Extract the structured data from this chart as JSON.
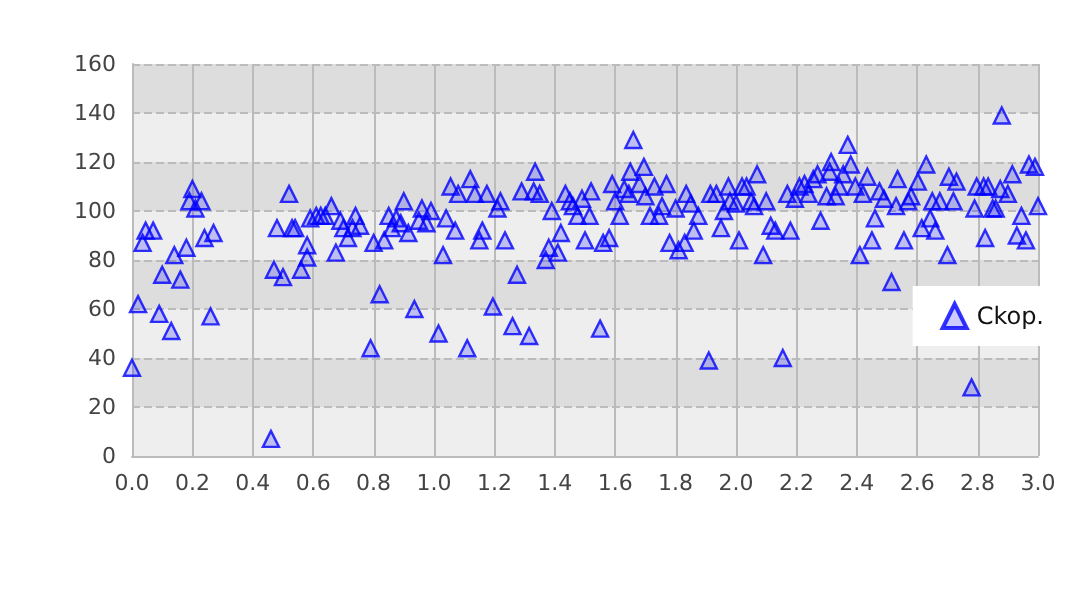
{
  "chart_data": {
    "type": "scatter",
    "marker": "triangle",
    "grid": true,
    "legend": "right",
    "xlim": [
      0,
      3.0
    ],
    "ylim": [
      0,
      160
    ],
    "xticks": [
      {
        "value": 0,
        "label": "0.0"
      },
      {
        "value": 0.2,
        "label": "0.2"
      },
      {
        "value": 0.4,
        "label": "0.4"
      },
      {
        "value": 0.6,
        "label": "0.6"
      },
      {
        "value": 0.8,
        "label": "0.8"
      },
      {
        "value": 1.0,
        "label": "1.0"
      },
      {
        "value": 1.2,
        "label": "1.2"
      },
      {
        "value": 1.4,
        "label": "1.4"
      },
      {
        "value": 1.6,
        "label": "1.6"
      },
      {
        "value": 1.8,
        "label": "1.8"
      },
      {
        "value": 2.0,
        "label": "2.0"
      },
      {
        "value": 2.2,
        "label": "2.2"
      },
      {
        "value": 2.4,
        "label": "2.4"
      },
      {
        "value": 2.6,
        "label": "2.6"
      },
      {
        "value": 2.8,
        "label": "2.8"
      },
      {
        "value": 3.0,
        "label": "3.0"
      }
    ],
    "yticks": [
      0,
      20,
      40,
      60,
      80,
      100,
      120,
      140,
      160
    ],
    "series": [
      {
        "name": "Ckop.",
        "color": "#0000ff",
        "x": [
          0.0,
          0.02,
          0.035,
          0.045,
          0.07,
          0.1,
          0.09,
          0.13,
          0.14,
          0.16,
          0.18,
          0.2,
          0.19,
          0.21,
          0.23,
          0.24,
          0.26,
          0.27,
          0.46,
          0.47,
          0.5,
          0.48,
          0.52,
          0.53,
          0.54,
          0.56,
          0.58,
          0.58,
          0.59,
          0.61,
          0.625,
          0.64,
          0.66,
          0.675,
          0.69,
          0.7,
          0.715,
          0.73,
          0.74,
          0.755,
          0.79,
          0.8,
          0.82,
          0.835,
          0.85,
          0.86,
          0.875,
          0.89,
          0.9,
          0.915,
          0.935,
          0.95,
          0.96,
          0.975,
          0.99,
          1.015,
          1.03,
          1.04,
          1.055,
          1.07,
          1.08,
          1.11,
          1.12,
          1.135,
          1.15,
          1.16,
          1.175,
          1.195,
          1.21,
          1.22,
          1.235,
          1.26,
          1.275,
          1.29,
          1.315,
          1.33,
          1.335,
          1.35,
          1.37,
          1.38,
          1.39,
          1.41,
          1.42,
          1.435,
          1.45,
          1.46,
          1.475,
          1.49,
          1.5,
          1.515,
          1.52,
          1.55,
          1.56,
          1.58,
          1.59,
          1.6,
          1.615,
          1.63,
          1.645,
          1.65,
          1.66,
          1.68,
          1.695,
          1.7,
          1.715,
          1.73,
          1.745,
          1.755,
          1.77,
          1.78,
          1.8,
          1.81,
          1.83,
          1.835,
          1.85,
          1.86,
          1.875,
          1.91,
          1.915,
          1.935,
          1.95,
          1.96,
          1.975,
          1.98,
          2.0,
          2.01,
          2.02,
          2.035,
          2.05,
          2.06,
          2.07,
          2.09,
          2.1,
          2.115,
          2.13,
          2.155,
          2.17,
          2.18,
          2.195,
          2.21,
          2.227,
          2.24,
          2.256,
          2.27,
          2.28,
          2.3,
          2.31,
          2.315,
          2.33,
          2.342,
          2.355,
          2.37,
          2.38,
          2.395,
          2.41,
          2.42,
          2.435,
          2.45,
          2.46,
          2.475,
          2.49,
          2.515,
          2.53,
          2.535,
          2.556,
          2.57,
          2.58,
          2.602,
          2.615,
          2.63,
          2.643,
          2.65,
          2.66,
          2.675,
          2.7,
          2.705,
          2.72,
          2.73,
          2.78,
          2.79,
          2.797,
          2.82,
          2.825,
          2.835,
          2.85,
          2.86,
          2.875,
          2.88,
          2.9,
          2.915,
          2.93,
          2.945,
          2.96,
          2.97,
          2.99,
          3.0
        ],
        "values": [
          36,
          62,
          87,
          92,
          92,
          74,
          58,
          51,
          82,
          72,
          85,
          109,
          104,
          101,
          104,
          89,
          57,
          91,
          7,
          76,
          73,
          93,
          107,
          93,
          93,
          76,
          81,
          86,
          97,
          98,
          98,
          98,
          102,
          83,
          96,
          93,
          89,
          93,
          98,
          94,
          44,
          87,
          66,
          88,
          98,
          93,
          97,
          95,
          104,
          91,
          60,
          96,
          101,
          95,
          100,
          50,
          82,
          97,
          110,
          92,
          107,
          44,
          113,
          107,
          88,
          92,
          107,
          61,
          101,
          104,
          88,
          53,
          74,
          108,
          49,
          108,
          116,
          107,
          80,
          85,
          100,
          83,
          91,
          107,
          104,
          102,
          98,
          105,
          88,
          98,
          108,
          52,
          87,
          89,
          111,
          104,
          98,
          109,
          107,
          116,
          129,
          111,
          118,
          106,
          98,
          110,
          98,
          102,
          111,
          87,
          101,
          84,
          87,
          107,
          103,
          92,
          98,
          39,
          107,
          107,
          93,
          100,
          110,
          104,
          103,
          88,
          110,
          110,
          104,
          102,
          115,
          82,
          104,
          94,
          92,
          40,
          107,
          92,
          105,
          110,
          111,
          107,
          113,
          115,
          96,
          106,
          116,
          120,
          106,
          110,
          115,
          127,
          119,
          110,
          82,
          107,
          114,
          88,
          97,
          108,
          105,
          71,
          102,
          113,
          88,
          104,
          106,
          112,
          93,
          119,
          97,
          104,
          92,
          104,
          82,
          114,
          104,
          112,
          28,
          101,
          110,
          110,
          89,
          110,
          101,
          101,
          109,
          139,
          107,
          115,
          90,
          98,
          88,
          119,
          118,
          102
        ]
      }
    ]
  }
}
